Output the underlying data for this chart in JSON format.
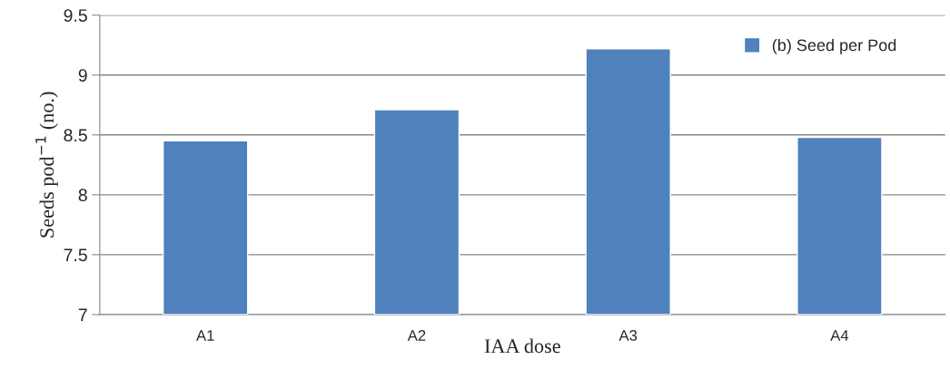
{
  "chart_data": {
    "type": "bar",
    "xlabel": "IAA dose",
    "ylabel": "Seeds pod$^{−1}$ (no.)",
    "categories": [
      "A1",
      "A2",
      "A3",
      "A4"
    ],
    "series": [
      {
        "name": "(b) Seed per Pod",
        "color": "#4f81bd",
        "values": [
          8.45,
          8.71,
          9.22,
          8.48
        ]
      }
    ],
    "ylim": [
      7,
      9.5
    ],
    "yticks": [
      7,
      {
        "value": 7.5,
        "label": "7.5"
      },
      8,
      {
        "value": 8.5,
        "label": "8.5"
      },
      9,
      {
        "value": 9.5,
        "label": "9.5"
      }
    ],
    "grid": "y",
    "legend": "top right"
  }
}
